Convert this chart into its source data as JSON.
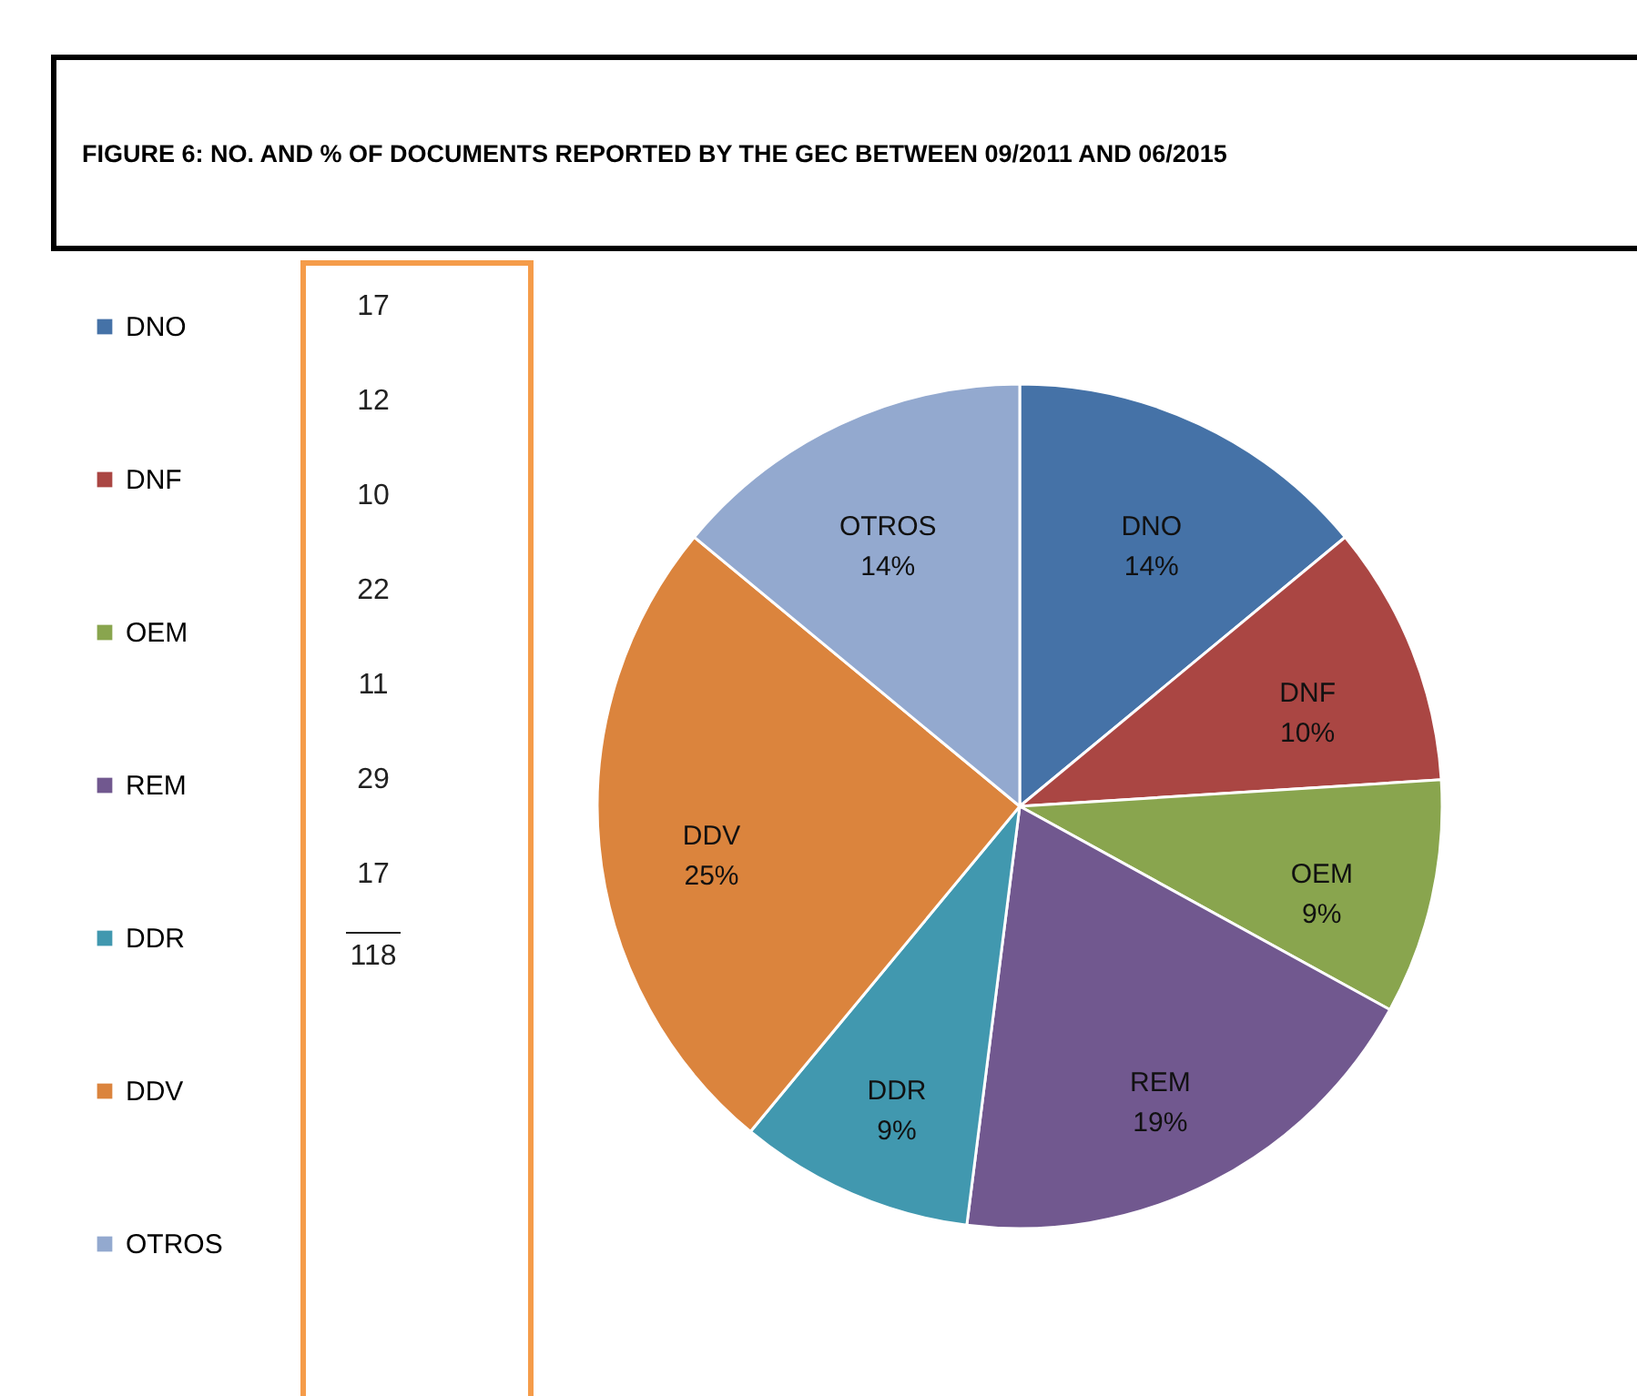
{
  "chart_data": {
    "type": "pie",
    "title": "FIGURE  6: NO. AND % OF DOCUMENTS  REPORTED  BY THE GEC BETWEEN  09/2011 AND 06/2015",
    "categories": [
      "DNO",
      "DNF",
      "OEM",
      "REM",
      "DDR",
      "DDV",
      "OTROS"
    ],
    "values": [
      14,
      10,
      9,
      19,
      9,
      25,
      14
    ],
    "value_labels": [
      "14%",
      "10%",
      "9%",
      "19%",
      "9%",
      "25%",
      "14%"
    ],
    "annotations": [
      "17",
      "12",
      "10",
      "22",
      "11",
      "29",
      "17",
      "118"
    ],
    "colors": [
      "#4572a7",
      "#aa4643",
      "#89a54e",
      "#71588f",
      "#4198af",
      "#db843d",
      "#93a9cf"
    ],
    "legend": "left"
  }
}
